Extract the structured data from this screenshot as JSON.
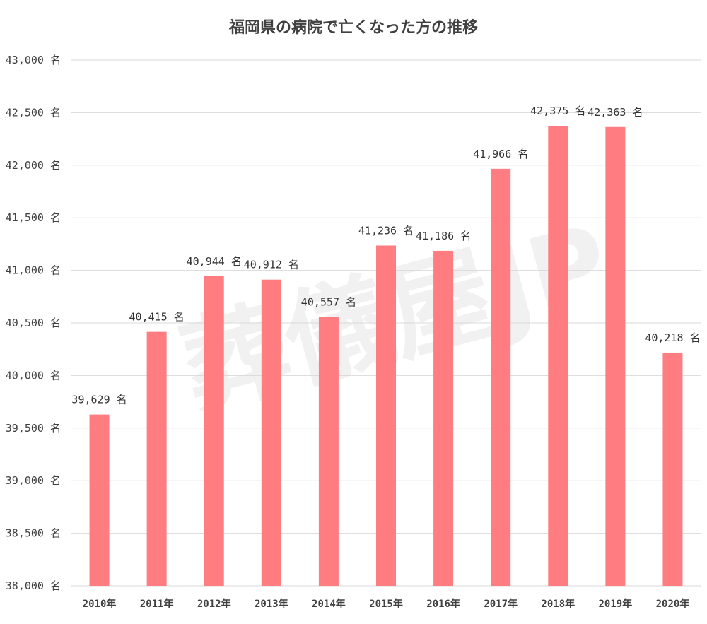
{
  "chart_data": {
    "type": "bar",
    "title": "福岡県の病院で亡くなった方の推移",
    "watermark": "葬儀屋JP",
    "unit": "名",
    "categories": [
      "2010年",
      "2011年",
      "2012年",
      "2013年",
      "2014年",
      "2015年",
      "2016年",
      "2017年",
      "2018年",
      "2019年",
      "2020年"
    ],
    "values": [
      39629,
      40415,
      40944,
      40912,
      40557,
      41236,
      41186,
      41966,
      42375,
      42363,
      40218
    ],
    "value_labels": [
      "39,629 名",
      "40,415 名",
      "40,944 名",
      "40,912 名",
      "40,557 名",
      "41,236 名",
      "41,186 名",
      "41,966 名",
      "42,375 名",
      "42,363 名",
      "40,218 名"
    ],
    "ylim": [
      38000,
      43000
    ],
    "yticks": [
      38000,
      38500,
      39000,
      39500,
      40000,
      40500,
      41000,
      41500,
      42000,
      42500,
      43000
    ],
    "ytick_labels": [
      "38,000 名",
      "38,500 名",
      "39,000 名",
      "39,500 名",
      "40,000 名",
      "40,500 名",
      "41,000 名",
      "41,500 名",
      "42,000 名",
      "42,500 名",
      "43,000 名"
    ],
    "xlabel": "",
    "ylabel": "",
    "grid": true,
    "bar_color": "#ff7c80",
    "legend": "none"
  }
}
